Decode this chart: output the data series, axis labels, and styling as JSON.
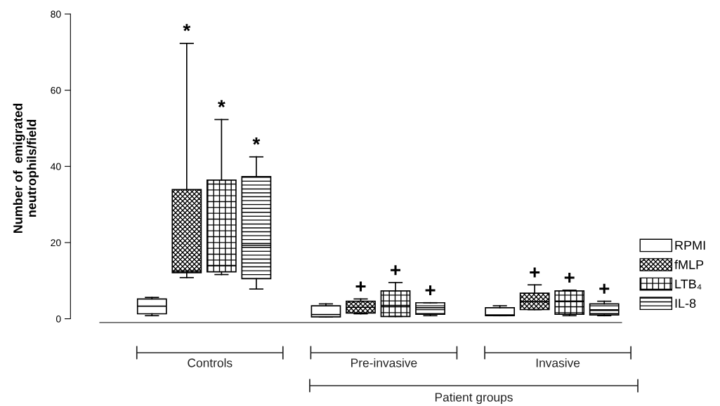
{
  "chart_data": {
    "type": "box",
    "ylabel": "Number of  emigrated\nneutrophils/field",
    "categories": [
      "Controls",
      "Pre-invasive",
      "Invasive"
    ],
    "series": [
      {
        "name": "RPMI",
        "color": "#000000",
        "boxes": [
          {
            "low": 0.8,
            "q1": 1.3,
            "median": 3.3,
            "q3": 5.2,
            "high": 5.6
          },
          {
            "low": 0.5,
            "q1": 0.5,
            "median": 1.1,
            "q3": 3.4,
            "high": 3.9
          },
          {
            "low": 0.8,
            "q1": 0.8,
            "median": 1.0,
            "q3": 2.9,
            "high": 3.4
          }
        ]
      },
      {
        "name": "fMLP",
        "color": "#000000",
        "boxes": [
          {
            "low": 10.8,
            "q1": 12.1,
            "median": 12.5,
            "q3": 33.9,
            "high": 72.3
          },
          {
            "low": 1.3,
            "q1": 1.5,
            "median": 3.0,
            "q3": 4.6,
            "high": 5.2
          },
          {
            "low": 2.4,
            "q1": 2.4,
            "median": 4.5,
            "q3": 6.7,
            "high": 8.9
          }
        ]
      },
      {
        "name": "LTB₄",
        "color": "#000000",
        "boxes": [
          {
            "low": 11.6,
            "q1": 12.3,
            "median": 14.0,
            "q3": 36.4,
            "high": 52.3
          },
          {
            "low": 0.6,
            "q1": 0.6,
            "median": 3.5,
            "q3": 7.3,
            "high": 9.5
          },
          {
            "low": 0.8,
            "q1": 1.2,
            "median": 4.5,
            "q3": 7.3,
            "high": 7.5
          }
        ]
      },
      {
        "name": "IL-8",
        "color": "#000000",
        "boxes": [
          {
            "low": 7.8,
            "q1": 10.5,
            "median": 19.3,
            "q3": 37.3,
            "high": 42.5
          },
          {
            "low": 0.8,
            "q1": 1.2,
            "median": 2.9,
            "q3": 4.2,
            "high": 4.2
          },
          {
            "low": 0.8,
            "q1": 1.0,
            "median": 2.2,
            "q3": 3.9,
            "high": 4.6
          }
        ]
      }
    ],
    "annotations": [
      "*",
      "*",
      "*",
      "+",
      "+",
      "+",
      "+",
      "+",
      "+",
      "Patient groups"
    ],
    "ylim": [
      -1,
      80
    ],
    "yticks": [
      0,
      20,
      40,
      60,
      80
    ],
    "grid": false,
    "legend": "right"
  }
}
